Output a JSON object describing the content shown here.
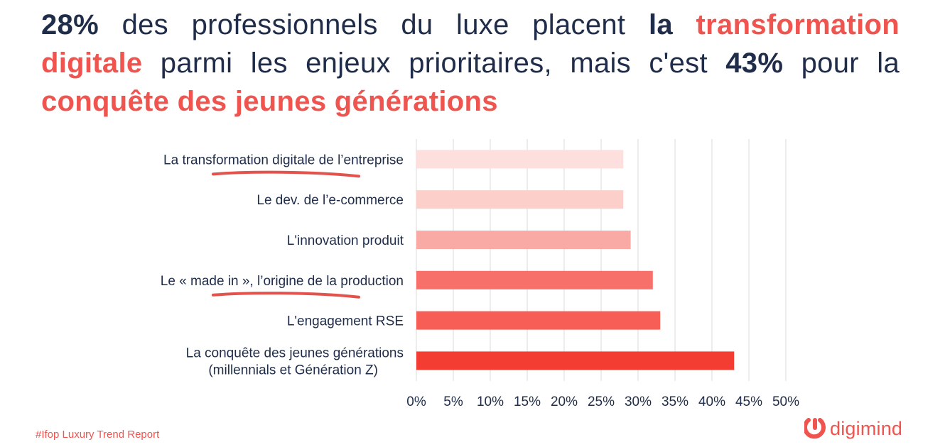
{
  "headline": {
    "seg1": "28%",
    "seg2": " des professionnels du luxe placent ",
    "seg3": "la",
    "seg4": "transformation digitale",
    "seg5": " parmi les enjeux prioritaires, mais c'est ",
    "seg6": "43%",
    "seg7": " pour la ",
    "seg8": "conquête des jeunes générations"
  },
  "footer": {
    "tag": "#Ifop Luxury Trend Report",
    "brand": "digimind"
  },
  "colors": {
    "text": "#1f2d4a",
    "accent": "#f0544f",
    "grid": "#d9d9d9",
    "underline": "#e3534e"
  },
  "chart_data": {
    "type": "bar",
    "orientation": "horizontal",
    "categories": [
      "La transformation digitale de l’entreprise",
      "Le  dev. de l’e-commerce",
      "L'innovation produit",
      "Le « made in », l’origine de la production",
      "L'engagement RSE",
      "La conquête des jeunes générations\n(millennials et Génération Z)"
    ],
    "values": [
      28,
      28,
      29,
      32,
      33,
      43
    ],
    "bar_colors": [
      "#fde0de",
      "#fccfcb",
      "#f9aaa4",
      "#f7716a",
      "#f65e56",
      "#f43d32"
    ],
    "xlim": [
      0,
      50
    ],
    "ticks": [
      0,
      5,
      10,
      15,
      20,
      25,
      30,
      35,
      40,
      45,
      50
    ],
    "tick_labels": [
      "0%",
      "5%",
      "10%",
      "15%",
      "20%",
      "25%",
      "30%",
      "35%",
      "40%",
      "45%",
      "50%"
    ],
    "grid": true,
    "underlined_categories": [
      0,
      3
    ]
  }
}
